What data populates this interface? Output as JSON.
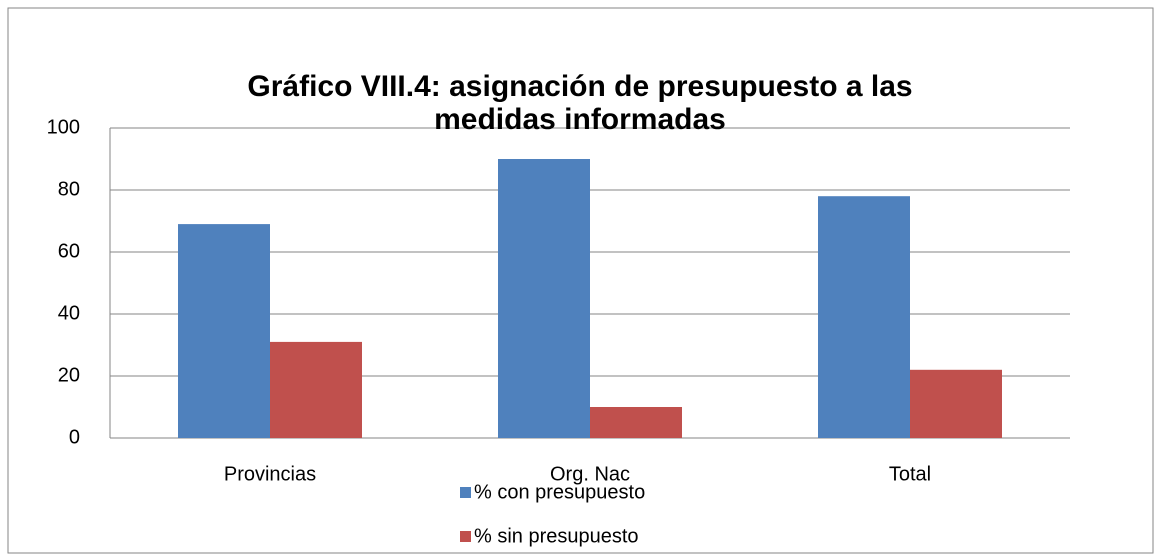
{
  "chart_data": {
    "type": "bar",
    "title": "Gráfico VIII.4: asignación de presupuesto a las medidas informadas",
    "categories": [
      "Provincias",
      "Org. Nac",
      "Total"
    ],
    "series": [
      {
        "name": "% con presupuesto",
        "color": "#4f81bd",
        "values": [
          69,
          90,
          78
        ]
      },
      {
        "name": "% sin presupuesto",
        "color": "#c0504d",
        "values": [
          31,
          10,
          22
        ]
      }
    ],
    "ylim": [
      0,
      100
    ],
    "yticks": [
      0,
      20,
      40,
      60,
      80,
      100
    ],
    "grid": true,
    "legend": "bottom"
  }
}
